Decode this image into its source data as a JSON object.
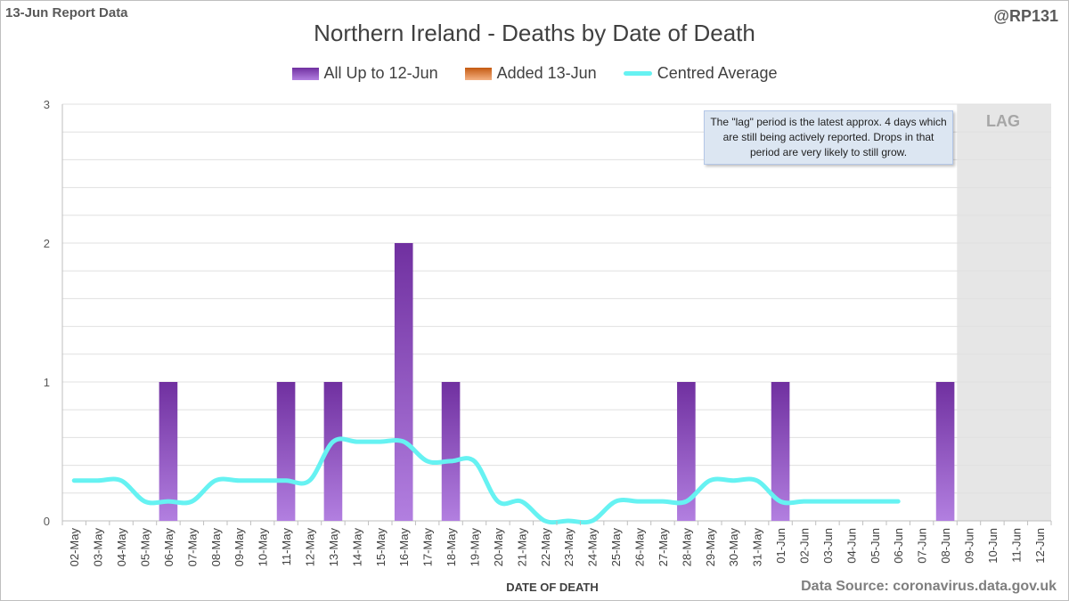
{
  "corner_left": "13-Jun Report Data",
  "corner_right": "@RP131",
  "source": "Data Source: coronavirus.data.gov.uk",
  "note": "The \"lag\" period is the latest approx. 4 days which are still being actively reported.  Drops in that period are very likely to still grow.",
  "colors": {
    "bar_top": "#7030a0",
    "bar_bottom": "#b27fe0",
    "added": "#c55a11",
    "average": "#66f2f2",
    "lag_fill": "#e6e6e6",
    "grid": "#e0e0e0"
  },
  "chart_data": {
    "type": "bar",
    "title": "Northern Ireland - Deaths by Date of Death",
    "xlabel": "DATE OF DEATH",
    "ylabel": "",
    "ylim": [
      0,
      3
    ],
    "yticks": [
      0,
      1,
      2,
      3
    ],
    "lag_label": "LAG",
    "lag_categories": [
      "09-Jun",
      "10-Jun",
      "11-Jun",
      "12-Jun"
    ],
    "legend": [
      "All Up to 12-Jun",
      "Added 13-Jun",
      "Centred Average"
    ],
    "categories": [
      "02-May",
      "03-May",
      "04-May",
      "05-May",
      "06-May",
      "07-May",
      "08-May",
      "09-May",
      "10-May",
      "11-May",
      "12-May",
      "13-May",
      "14-May",
      "15-May",
      "16-May",
      "17-May",
      "18-May",
      "19-May",
      "20-May",
      "21-May",
      "22-May",
      "23-May",
      "24-May",
      "25-May",
      "26-May",
      "27-May",
      "28-May",
      "29-May",
      "30-May",
      "31-May",
      "01-Jun",
      "02-Jun",
      "03-Jun",
      "04-Jun",
      "05-Jun",
      "06-Jun",
      "07-Jun",
      "08-Jun",
      "09-Jun",
      "10-Jun",
      "11-Jun",
      "12-Jun"
    ],
    "series": [
      {
        "name": "All Up to 12-Jun",
        "type": "bar",
        "values": [
          0,
          0,
          0,
          0,
          1,
          0,
          0,
          0,
          0,
          1,
          0,
          1,
          0,
          0,
          2,
          0,
          1,
          0,
          0,
          0,
          0,
          0,
          0,
          0,
          0,
          0,
          1,
          0,
          0,
          0,
          1,
          0,
          0,
          0,
          0,
          0,
          0,
          1,
          0,
          0,
          0,
          0
        ]
      },
      {
        "name": "Added 13-Jun",
        "type": "bar",
        "values": [
          0,
          0,
          0,
          0,
          0,
          0,
          0,
          0,
          0,
          0,
          0,
          0,
          0,
          0,
          0,
          0,
          0,
          0,
          0,
          0,
          0,
          0,
          0,
          0,
          0,
          0,
          0,
          0,
          0,
          0,
          0,
          0,
          0,
          0,
          0,
          0,
          0,
          0,
          0,
          0,
          0,
          0
        ]
      },
      {
        "name": "Centred Average",
        "type": "line",
        "values": [
          0.29,
          0.29,
          0.29,
          0.14,
          0.14,
          0.14,
          0.29,
          0.29,
          0.29,
          0.29,
          0.29,
          0.57,
          0.57,
          0.57,
          0.57,
          0.43,
          0.43,
          0.43,
          0.14,
          0.14,
          0,
          0,
          0,
          0.14,
          0.14,
          0.14,
          0.14,
          0.29,
          0.29,
          0.29,
          0.14,
          0.14,
          0.14,
          0.14,
          0.14,
          0.14,
          null,
          null,
          null,
          null,
          null,
          null
        ]
      }
    ]
  }
}
